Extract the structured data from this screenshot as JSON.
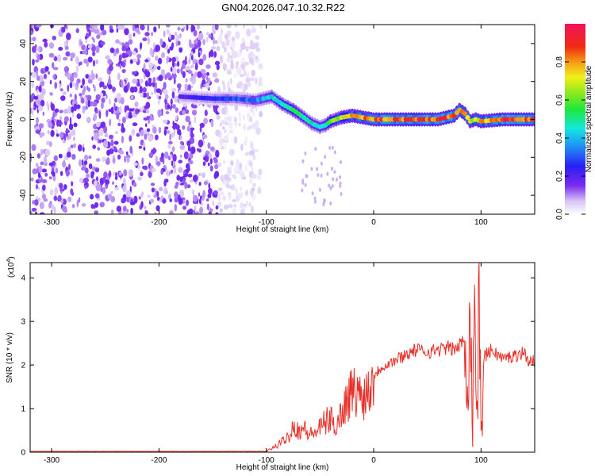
{
  "title": "GN04.2026.047.10.32.R22",
  "chart_data": [
    {
      "type": "heatmap",
      "xlabel": "Height of straight line (km)",
      "ylabel": "Frequency (Hz)",
      "xlim": [
        -320,
        150
      ],
      "ylim": [
        -50,
        50
      ],
      "xticks": [
        -300,
        -200,
        -100,
        0,
        100
      ],
      "xtick_labels": [
        "-300",
        "-200",
        "-100",
        "0",
        "100"
      ],
      "yticks": [
        -40,
        -20,
        0,
        20,
        40
      ],
      "ytick_labels": [
        "-40",
        "-20",
        "0",
        "20",
        "40"
      ],
      "colorbar": {
        "label": "Normalized spectral amplitude",
        "range": [
          0,
          1
        ],
        "ticks": [
          0.0,
          0.2,
          0.4,
          0.6,
          0.8
        ],
        "tick_labels": [
          "0.0",
          "0.2",
          "0.4",
          "0.6",
          "0.8"
        ]
      },
      "noise_region_x": [
        -320,
        -120
      ],
      "ridge": {
        "x": [
          -180,
          -150,
          -130,
          -110,
          -95,
          -85,
          -75,
          -65,
          -58,
          -50,
          -45,
          -40,
          -30,
          -20,
          -10,
          0,
          20,
          40,
          60,
          75,
          80,
          85,
          90,
          95,
          100,
          120,
          150
        ],
        "freq": [
          12,
          11,
          11,
          10,
          12,
          8,
          5,
          1,
          -2,
          -4,
          -3,
          -1,
          1,
          2,
          1,
          0,
          0,
          0,
          0,
          2,
          5,
          3,
          -1,
          0,
          -1,
          0,
          0
        ],
        "amplitude": [
          0.2,
          0.25,
          0.3,
          0.35,
          0.45,
          0.5,
          0.55,
          0.5,
          0.45,
          0.45,
          0.5,
          0.6,
          0.7,
          0.75,
          0.8,
          0.85,
          0.9,
          0.9,
          0.9,
          0.88,
          0.85,
          0.8,
          0.7,
          0.75,
          0.8,
          0.9,
          0.9
        ]
      }
    },
    {
      "type": "line",
      "xlabel": "Height of straight line (km)",
      "ylabel": "SNR (10 * v/v)",
      "yscale_note": "(x10",
      "yscale_exp": "4",
      "yscale_close": ")",
      "xlim": [
        -320,
        150
      ],
      "ylim": [
        0,
        4.35
      ],
      "xticks": [
        -300,
        -200,
        -100,
        0,
        100
      ],
      "xtick_labels": [
        "-300",
        "-200",
        "-100",
        "0",
        "100"
      ],
      "yticks": [
        0,
        1,
        2,
        3,
        4
      ],
      "ytick_labels": [
        "0",
        "1",
        "2",
        "3",
        "4"
      ],
      "series": [
        {
          "name": "SNR",
          "color": "#e8302a",
          "x": [
            -320,
            -150,
            -100,
            -90,
            -80,
            -75,
            -70,
            -65,
            -60,
            -55,
            -50,
            -45,
            -40,
            -35,
            -30,
            -25,
            -20,
            -15,
            -10,
            -5,
            0,
            5,
            10,
            15,
            20,
            30,
            40,
            50,
            60,
            70,
            75,
            80,
            85,
            88,
            90,
            92,
            94,
            96,
            98,
            100,
            103,
            110,
            120,
            130,
            140,
            145,
            150
          ],
          "y": [
            0.02,
            0.02,
            0.02,
            0.15,
            0.35,
            0.6,
            0.5,
            0.55,
            0.4,
            0.45,
            0.55,
            0.7,
            0.75,
            0.6,
            0.9,
            1.2,
            1.4,
            1.35,
            1.3,
            1.45,
            1.75,
            1.9,
            2.0,
            2.05,
            2.1,
            2.25,
            2.35,
            2.3,
            2.35,
            2.4,
            2.35,
            2.45,
            2.6,
            1.8,
            3.4,
            0.4,
            4.3,
            0.2,
            3.5,
            0.9,
            2.2,
            2.35,
            2.15,
            2.2,
            2.3,
            2.05,
            2.1
          ]
        }
      ]
    }
  ]
}
